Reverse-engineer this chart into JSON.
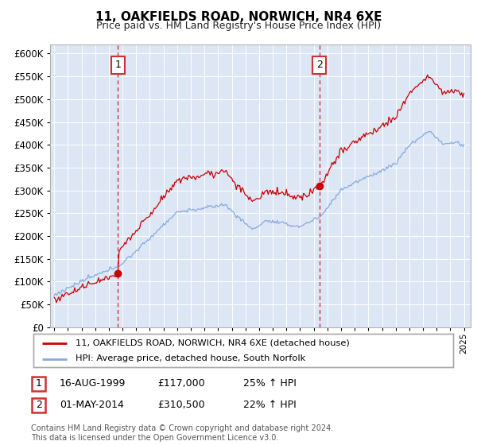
{
  "title": "11, OAKFIELDS ROAD, NORWICH, NR4 6XE",
  "subtitle": "Price paid vs. HM Land Registry's House Price Index (HPI)",
  "legend_label1": "11, OAKFIELDS ROAD, NORWICH, NR4 6XE (detached house)",
  "legend_label2": "HPI: Average price, detached house, South Norfolk",
  "annotation1": {
    "label": "1",
    "date_str": "16-AUG-1999",
    "price_str": "£117,000",
    "pct_str": "25% ↑ HPI"
  },
  "annotation2": {
    "label": "2",
    "date_str": "01-MAY-2014",
    "price_str": "£310,500",
    "pct_str": "22% ↑ HPI"
  },
  "footer": "Contains HM Land Registry data © Crown copyright and database right 2024.\nThis data is licensed under the Open Government Licence v3.0.",
  "ylim": [
    0,
    620000
  ],
  "yticks": [
    0,
    50000,
    100000,
    150000,
    200000,
    250000,
    300000,
    350000,
    400000,
    450000,
    500000,
    550000,
    600000
  ],
  "bg_color": "#dce6f5",
  "line1_color": "#cc0000",
  "line2_color": "#88aadd",
  "vline_color": "#cc0000",
  "box_color": "#cc3333",
  "anno_x1": 2000.0,
  "anno_x2": 2014.5,
  "anno_y1": 117000,
  "anno_y2": 310500,
  "xlim_left": 1994.7,
  "xlim_right": 2025.5
}
